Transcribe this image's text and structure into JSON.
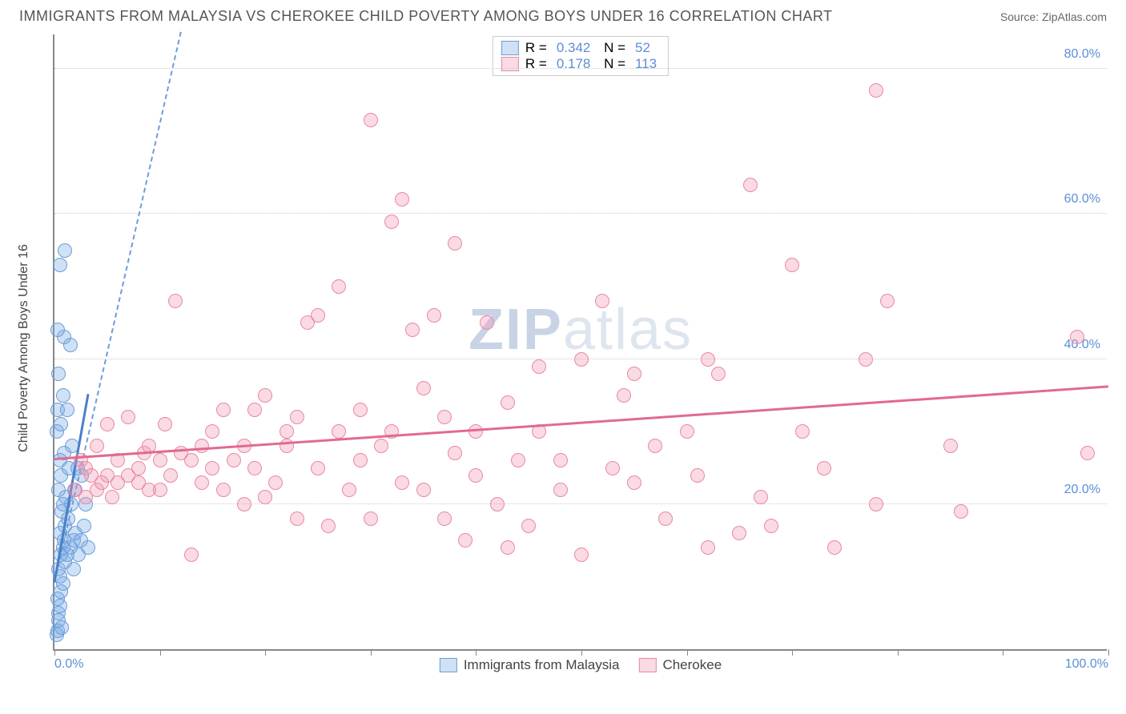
{
  "header": {
    "title": "IMMIGRANTS FROM MALAYSIA VS CHEROKEE CHILD POVERTY AMONG BOYS UNDER 16 CORRELATION CHART",
    "source_prefix": "Source: ",
    "source_name": "ZipAtlas.com"
  },
  "chart": {
    "type": "scatter",
    "y_label": "Child Poverty Among Boys Under 16",
    "watermark_bold": "ZIP",
    "watermark_rest": "atlas",
    "x_range": [
      0,
      100
    ],
    "y_range": [
      0,
      85
    ],
    "x_ticks": [
      0,
      10,
      20,
      30,
      40,
      50,
      60,
      70,
      80,
      90,
      100
    ],
    "x_tick_labels": {
      "0": "0.0%",
      "100": "100.0%"
    },
    "y_gridlines": [
      20,
      40,
      60,
      80
    ],
    "y_tick_labels": {
      "20": "20.0%",
      "40": "40.0%",
      "60": "60.0%",
      "80": "80.0%"
    },
    "grid_color": "#cccccc",
    "axis_color": "#888888",
    "tick_label_color": "#5b8fd6",
    "point_radius": 9,
    "series": [
      {
        "id": "malaysia",
        "label": "Immigrants from Malaysia",
        "fill": "rgba(120,170,230,0.35)",
        "stroke": "#6a9ed8",
        "R": "0.342",
        "N": "52",
        "trend_solid": {
          "x1": 0,
          "y1": 9,
          "x2": 3.2,
          "y2": 35,
          "color": "#4a7fc9"
        },
        "trend_dashed": {
          "x1": 0,
          "y1": 9,
          "x2": 12,
          "y2": 85,
          "color": "#6a9ed8"
        },
        "points": [
          [
            0.2,
            2
          ],
          [
            0.3,
            2.5
          ],
          [
            0.4,
            5
          ],
          [
            0.5,
            6
          ],
          [
            0.3,
            7
          ],
          [
            0.6,
            8
          ],
          [
            0.8,
            9
          ],
          [
            0.5,
            10
          ],
          [
            0.4,
            11
          ],
          [
            1.0,
            12
          ],
          [
            0.6,
            13
          ],
          [
            1.2,
            13
          ],
          [
            0.8,
            14
          ],
          [
            1.5,
            14
          ],
          [
            0.9,
            15
          ],
          [
            1.8,
            15
          ],
          [
            0.5,
            16
          ],
          [
            1.0,
            17
          ],
          [
            2.0,
            16
          ],
          [
            1.3,
            18
          ],
          [
            0.7,
            19
          ],
          [
            1.6,
            20
          ],
          [
            0.8,
            20
          ],
          [
            1.1,
            21
          ],
          [
            0.4,
            22
          ],
          [
            1.9,
            22
          ],
          [
            0.6,
            24
          ],
          [
            1.4,
            25
          ],
          [
            2.2,
            25
          ],
          [
            0.9,
            27
          ],
          [
            1.7,
            28
          ],
          [
            0.5,
            26
          ],
          [
            2.8,
            17
          ],
          [
            2.5,
            15
          ],
          [
            3.0,
            20
          ],
          [
            0.3,
            33
          ],
          [
            1.2,
            33
          ],
          [
            0.8,
            35
          ],
          [
            0.4,
            38
          ],
          [
            1.5,
            42
          ],
          [
            0.9,
            43
          ],
          [
            0.3,
            44
          ],
          [
            0.5,
            53
          ],
          [
            1.0,
            55
          ],
          [
            0.2,
            30
          ],
          [
            0.6,
            31
          ],
          [
            1.8,
            11
          ],
          [
            2.3,
            13
          ],
          [
            2.6,
            24
          ],
          [
            3.2,
            14
          ],
          [
            0.4,
            4
          ],
          [
            0.7,
            3
          ]
        ]
      },
      {
        "id": "cherokee",
        "label": "Cherokee",
        "fill": "rgba(240,150,175,0.35)",
        "stroke": "#e889a3",
        "R": "0.178",
        "N": "113",
        "trend_solid": {
          "x1": 0,
          "y1": 26,
          "x2": 100,
          "y2": 36,
          "color": "#e26a8e"
        },
        "points": [
          [
            2,
            22
          ],
          [
            2.5,
            26
          ],
          [
            3,
            21
          ],
          [
            3,
            25
          ],
          [
            3.5,
            24
          ],
          [
            4,
            22
          ],
          [
            4,
            28
          ],
          [
            4.5,
            23
          ],
          [
            5,
            24
          ],
          [
            5,
            31
          ],
          [
            5.5,
            21
          ],
          [
            6,
            23
          ],
          [
            6,
            26
          ],
          [
            7,
            24
          ],
          [
            7,
            32
          ],
          [
            8,
            23
          ],
          [
            8,
            25
          ],
          [
            8.5,
            27
          ],
          [
            9,
            28
          ],
          [
            9,
            22
          ],
          [
            10,
            22
          ],
          [
            10,
            26
          ],
          [
            10.5,
            31
          ],
          [
            11,
            24
          ],
          [
            11.5,
            48
          ],
          [
            12,
            27
          ],
          [
            13,
            26
          ],
          [
            13,
            13
          ],
          [
            14,
            23
          ],
          [
            14,
            28
          ],
          [
            15,
            25
          ],
          [
            15,
            30
          ],
          [
            16,
            22
          ],
          [
            16,
            33
          ],
          [
            17,
            26
          ],
          [
            18,
            20
          ],
          [
            18,
            28
          ],
          [
            19,
            33
          ],
          [
            19,
            25
          ],
          [
            20,
            21
          ],
          [
            20,
            35
          ],
          [
            21,
            23
          ],
          [
            22,
            28
          ],
          [
            22,
            30
          ],
          [
            23,
            18
          ],
          [
            23,
            32
          ],
          [
            24,
            45
          ],
          [
            25,
            25
          ],
          [
            25,
            46
          ],
          [
            26,
            17
          ],
          [
            27,
            30
          ],
          [
            27,
            50
          ],
          [
            28,
            22
          ],
          [
            29,
            26
          ],
          [
            29,
            33
          ],
          [
            30,
            18
          ],
          [
            30,
            73
          ],
          [
            31,
            28
          ],
          [
            32,
            30
          ],
          [
            32,
            59
          ],
          [
            33,
            23
          ],
          [
            33,
            62
          ],
          [
            34,
            44
          ],
          [
            35,
            22
          ],
          [
            35,
            36
          ],
          [
            36,
            46
          ],
          [
            37,
            18
          ],
          [
            37,
            32
          ],
          [
            38,
            27
          ],
          [
            38,
            56
          ],
          [
            39,
            15
          ],
          [
            40,
            30
          ],
          [
            40,
            24
          ],
          [
            41,
            45
          ],
          [
            42,
            20
          ],
          [
            43,
            14
          ],
          [
            43,
            34
          ],
          [
            44,
            26
          ],
          [
            45,
            17
          ],
          [
            46,
            30
          ],
          [
            46,
            39
          ],
          [
            48,
            22
          ],
          [
            48,
            26
          ],
          [
            50,
            13
          ],
          [
            50,
            40
          ],
          [
            52,
            48
          ],
          [
            53,
            25
          ],
          [
            54,
            35
          ],
          [
            55,
            23
          ],
          [
            55,
            38
          ],
          [
            57,
            28
          ],
          [
            58,
            18
          ],
          [
            60,
            30
          ],
          [
            61,
            24
          ],
          [
            62,
            14
          ],
          [
            62,
            40
          ],
          [
            63,
            38
          ],
          [
            65,
            16
          ],
          [
            66,
            64
          ],
          [
            67,
            21
          ],
          [
            68,
            17
          ],
          [
            70,
            53
          ],
          [
            71,
            30
          ],
          [
            73,
            25
          ],
          [
            74,
            14
          ],
          [
            77,
            40
          ],
          [
            78,
            77
          ],
          [
            78,
            20
          ],
          [
            79,
            48
          ],
          [
            85,
            28
          ],
          [
            86,
            19
          ],
          [
            97,
            43
          ],
          [
            98,
            27
          ]
        ]
      }
    ],
    "legend_top_labels": {
      "R": "R =",
      "N": "N ="
    },
    "legend_bottom_items": [
      "Immigrants from Malaysia",
      "Cherokee"
    ]
  }
}
